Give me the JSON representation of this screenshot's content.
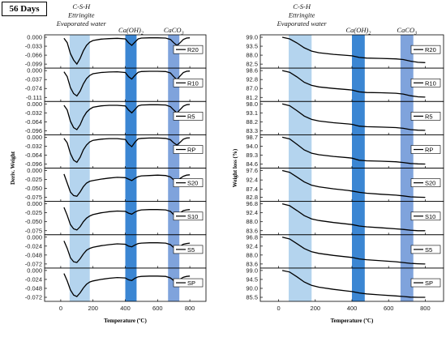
{
  "header": {
    "age_label": "56 Days"
  },
  "annotations": {
    "csh_lines": [
      "C-S-H",
      "Ettringite",
      "Evaporated water"
    ],
    "ch": "Ca(OH)",
    "ch_sub": "2",
    "cc": "CaCO",
    "cc_sub": "3"
  },
  "colors": {
    "band_light": "#b4d4ee",
    "band_dark": "#3b86d3",
    "band_mid": "#7fa3dc",
    "curve": "#000000"
  },
  "chart_data": [
    {
      "type": "line",
      "title": "",
      "xlabel": "Temperature (ºC)",
      "ylabel": "Deriv. Weight",
      "xlim": [
        -100,
        900
      ],
      "xticks": [
        0,
        200,
        400,
        600,
        800
      ],
      "bands": [
        [
          55,
          180
        ],
        [
          400,
          470
        ],
        [
          665,
          735
        ]
      ],
      "panels": [
        {
          "name": "R20",
          "yticks": [
            "0.000",
            "-0.033",
            "-0.066",
            "-0.099"
          ]
        },
        {
          "name": "R10",
          "yticks": [
            "0.000",
            "-0.037",
            "-0.074",
            "-0.111"
          ]
        },
        {
          "name": "R5",
          "yticks": [
            "0.000",
            "-0.032",
            "-0.064",
            "-0.096"
          ]
        },
        {
          "name": "RP",
          "yticks": [
            "0.000",
            "-0.032",
            "-0.064",
            "-0.096"
          ]
        },
        {
          "name": "S20",
          "yticks": [
            "0.000",
            "-0.025",
            "-0.050",
            "-0.075"
          ]
        },
        {
          "name": "S10",
          "yticks": [
            "0.000",
            "-0.025",
            "-0.050",
            "-0.075"
          ]
        },
        {
          "name": "S5",
          "yticks": [
            "0.000",
            "-0.024",
            "-0.048",
            "-0.072"
          ]
        },
        {
          "name": "SP",
          "yticks": [
            "0.000",
            "-0.024",
            "-0.048",
            "-0.072"
          ]
        }
      ],
      "x": [
        20,
        40,
        60,
        80,
        100,
        120,
        140,
        160,
        180,
        200,
        250,
        300,
        350,
        400,
        420,
        440,
        460,
        480,
        500,
        550,
        600,
        650,
        680,
        700,
        720,
        740,
        760,
        780,
        800
      ],
      "series": [
        {
          "name": "R20",
          "values": [
            -0.004,
            -0.02,
            -0.06,
            -0.084,
            -0.099,
            -0.078,
            -0.05,
            -0.03,
            -0.018,
            -0.012,
            -0.007,
            -0.005,
            -0.004,
            -0.006,
            -0.02,
            -0.03,
            -0.018,
            -0.006,
            -0.003,
            -0.002,
            -0.002,
            -0.003,
            -0.008,
            -0.02,
            -0.03,
            -0.02,
            -0.008,
            -0.003,
            -0.002
          ]
        },
        {
          "name": "R10",
          "values": [
            -0.005,
            -0.025,
            -0.07,
            -0.095,
            -0.105,
            -0.085,
            -0.055,
            -0.033,
            -0.02,
            -0.013,
            -0.008,
            -0.006,
            -0.005,
            -0.008,
            -0.025,
            -0.035,
            -0.02,
            -0.007,
            -0.004,
            -0.003,
            -0.003,
            -0.004,
            -0.01,
            -0.025,
            -0.037,
            -0.022,
            -0.008,
            -0.003,
            -0.002
          ]
        },
        {
          "name": "R5",
          "values": [
            -0.005,
            -0.022,
            -0.062,
            -0.085,
            -0.092,
            -0.075,
            -0.048,
            -0.03,
            -0.019,
            -0.012,
            -0.007,
            -0.005,
            -0.005,
            -0.007,
            -0.022,
            -0.032,
            -0.02,
            -0.007,
            -0.004,
            -0.003,
            -0.003,
            -0.004,
            -0.01,
            -0.022,
            -0.032,
            -0.02,
            -0.008,
            -0.003,
            -0.002
          ]
        },
        {
          "name": "RP",
          "values": [
            -0.004,
            -0.02,
            -0.058,
            -0.082,
            -0.09,
            -0.072,
            -0.045,
            -0.028,
            -0.017,
            -0.011,
            -0.007,
            -0.005,
            -0.005,
            -0.008,
            -0.024,
            -0.034,
            -0.018,
            -0.006,
            -0.004,
            -0.003,
            -0.003,
            -0.004,
            -0.009,
            -0.02,
            -0.028,
            -0.018,
            -0.007,
            -0.003,
            -0.002
          ]
        },
        {
          "name": "S20",
          "values": [
            -0.01,
            -0.035,
            -0.06,
            -0.07,
            -0.072,
            -0.06,
            -0.045,
            -0.035,
            -0.03,
            -0.028,
            -0.024,
            -0.021,
            -0.019,
            -0.02,
            -0.024,
            -0.028,
            -0.022,
            -0.017,
            -0.015,
            -0.014,
            -0.013,
            -0.014,
            -0.018,
            -0.026,
            -0.03,
            -0.022,
            -0.016,
            -0.013,
            -0.012
          ]
        },
        {
          "name": "S10",
          "values": [
            -0.01,
            -0.032,
            -0.058,
            -0.07,
            -0.073,
            -0.064,
            -0.05,
            -0.04,
            -0.034,
            -0.03,
            -0.025,
            -0.022,
            -0.02,
            -0.021,
            -0.026,
            -0.029,
            -0.023,
            -0.019,
            -0.017,
            -0.016,
            -0.016,
            -0.017,
            -0.021,
            -0.03,
            -0.034,
            -0.025,
            -0.019,
            -0.017,
            -0.016
          ]
        },
        {
          "name": "S5",
          "values": [
            -0.01,
            -0.03,
            -0.055,
            -0.066,
            -0.068,
            -0.058,
            -0.045,
            -0.035,
            -0.03,
            -0.027,
            -0.023,
            -0.02,
            -0.018,
            -0.019,
            -0.024,
            -0.026,
            -0.021,
            -0.017,
            -0.016,
            -0.015,
            -0.015,
            -0.016,
            -0.02,
            -0.028,
            -0.032,
            -0.024,
            -0.019,
            -0.017,
            -0.016
          ]
        },
        {
          "name": "SP",
          "values": [
            -0.008,
            -0.028,
            -0.052,
            -0.066,
            -0.07,
            -0.06,
            -0.047,
            -0.037,
            -0.031,
            -0.028,
            -0.024,
            -0.021,
            -0.019,
            -0.02,
            -0.025,
            -0.027,
            -0.021,
            -0.017,
            -0.016,
            -0.015,
            -0.015,
            -0.016,
            -0.02,
            -0.027,
            -0.031,
            -0.023,
            -0.018,
            -0.016,
            -0.015
          ]
        }
      ]
    },
    {
      "type": "line",
      "title": "",
      "xlabel": "Temperature (ºC)",
      "ylabel": "Weight loss (%)",
      "xlim": [
        -100,
        900
      ],
      "xticks": [
        0,
        200,
        400,
        600,
        800
      ],
      "bands": [
        [
          55,
          180
        ],
        [
          400,
          470
        ],
        [
          665,
          735
        ]
      ],
      "panels": [
        {
          "name": "R20",
          "yticks": [
            "99.0",
            "93.5",
            "88.0",
            "82.5"
          ]
        },
        {
          "name": "R10",
          "yticks": [
            "98.6",
            "92.8",
            "87.0",
            "81.2"
          ]
        },
        {
          "name": "R5",
          "yticks": [
            "98.0",
            "93.1",
            "88.2",
            "83.3"
          ]
        },
        {
          "name": "RP",
          "yticks": [
            "98.7",
            "94.0",
            "89.3",
            "84.6"
          ]
        },
        {
          "name": "S20",
          "yticks": [
            "97.6",
            "92.4",
            "87.4",
            "82.8"
          ]
        },
        {
          "name": "S10",
          "yticks": [
            "96.8",
            "92.4",
            "88.0",
            "83.6"
          ]
        },
        {
          "name": "S5",
          "yticks": [
            "96.8",
            "92.4",
            "88.0",
            "83.6"
          ]
        },
        {
          "name": "SP",
          "yticks": [
            "99.0",
            "94.5",
            "90.0",
            "85.5"
          ]
        }
      ],
      "x": [
        20,
        60,
        100,
        140,
        180,
        220,
        300,
        380,
        400,
        440,
        480,
        560,
        640,
        680,
        720,
        760,
        800
      ],
      "series": [
        {
          "name": "R20",
          "values": [
            99.0,
            98.0,
            95.5,
            92.5,
            90.5,
            89.5,
            88.5,
            87.8,
            87.6,
            86.6,
            86.2,
            86.0,
            85.7,
            85.3,
            84.3,
            83.6,
            83.4
          ]
        },
        {
          "name": "R10",
          "values": [
            98.6,
            97.5,
            94.5,
            91.0,
            89.0,
            88.0,
            87.0,
            86.2,
            86.0,
            84.8,
            84.4,
            84.2,
            83.9,
            83.4,
            82.3,
            81.6,
            81.4
          ]
        },
        {
          "name": "R5",
          "values": [
            98.0,
            97.0,
            94.3,
            91.3,
            89.5,
            88.6,
            87.7,
            87.0,
            86.8,
            85.8,
            85.5,
            85.3,
            85.0,
            84.6,
            83.9,
            83.6,
            83.5
          ]
        },
        {
          "name": "RP",
          "values": [
            98.7,
            97.8,
            95.0,
            92.0,
            90.3,
            89.5,
            88.6,
            87.9,
            87.7,
            86.6,
            86.3,
            86.1,
            85.8,
            85.4,
            84.9,
            84.7,
            84.6
          ]
        },
        {
          "name": "S20",
          "values": [
            97.6,
            96.6,
            94.0,
            91.3,
            89.5,
            88.6,
            87.5,
            86.6,
            86.3,
            85.6,
            85.1,
            84.5,
            84.0,
            83.6,
            83.1,
            82.9,
            82.8
          ]
        },
        {
          "name": "S10",
          "values": [
            96.8,
            95.9,
            93.5,
            91.0,
            89.4,
            88.6,
            87.6,
            86.8,
            86.6,
            85.9,
            85.5,
            85.0,
            84.5,
            84.2,
            83.8,
            83.6,
            83.6
          ]
        },
        {
          "name": "S5",
          "values": [
            96.8,
            95.9,
            93.6,
            91.2,
            89.6,
            88.8,
            87.8,
            87.0,
            86.8,
            86.1,
            85.7,
            85.2,
            84.7,
            84.3,
            83.9,
            83.7,
            83.6
          ]
        },
        {
          "name": "SP",
          "values": [
            99.0,
            98.2,
            95.8,
            93.2,
            91.5,
            90.6,
            89.5,
            88.6,
            88.4,
            87.7,
            87.2,
            86.7,
            86.2,
            85.9,
            85.6,
            85.5,
            85.5
          ]
        }
      ]
    }
  ]
}
